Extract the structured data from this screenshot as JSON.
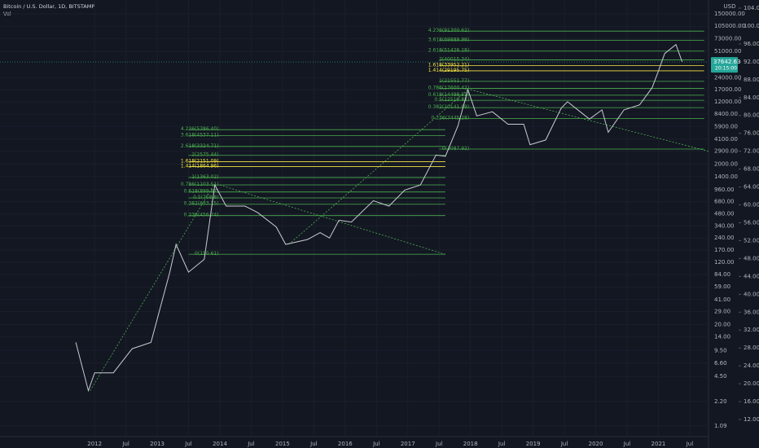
{
  "header": {
    "symbol": "Bitcoin / U.S. Dollar, 1D, BITSTAMP",
    "volume_label": "Vol"
  },
  "chart_data": {
    "type": "line",
    "y_unit": "USD",
    "log_scale": true,
    "grid": true,
    "xlim": [
      2010.49,
      2021.8
    ],
    "xticks": [
      {
        "value": 2012,
        "label": "2012"
      },
      {
        "value": 2012.5,
        "label": "Jul"
      },
      {
        "value": 2013,
        "label": "2013"
      },
      {
        "value": 2013.5,
        "label": "Jul"
      },
      {
        "value": 2014,
        "label": "2014"
      },
      {
        "value": 2014.5,
        "label": "Jul"
      },
      {
        "value": 2015,
        "label": "2015"
      },
      {
        "value": 2015.5,
        "label": "Jul"
      },
      {
        "value": 2016,
        "label": "2016"
      },
      {
        "value": 2016.5,
        "label": "Jul"
      },
      {
        "value": 2017,
        "label": "2017"
      },
      {
        "value": 2017.5,
        "label": "Jul"
      },
      {
        "value": 2018,
        "label": "2018"
      },
      {
        "value": 2018.5,
        "label": "Jul"
      },
      {
        "value": 2019,
        "label": "2019"
      },
      {
        "value": 2019.5,
        "label": "Jul"
      },
      {
        "value": 2020,
        "label": "2020"
      },
      {
        "value": 2020.5,
        "label": "Jul"
      },
      {
        "value": 2021,
        "label": "2021"
      },
      {
        "value": 2021.5,
        "label": "Jul"
      }
    ],
    "ylim": [
      0.73,
      223000
    ],
    "yticks": [
      {
        "value": 150000,
        "label": "150000.00"
      },
      {
        "value": 105000,
        "label": "105000.00"
      },
      {
        "value": 73000,
        "label": "73000.00"
      },
      {
        "value": 51000,
        "label": "51000.00"
      },
      {
        "value": 24000,
        "label": "24000.00"
      },
      {
        "value": 17000,
        "label": "17000.00"
      },
      {
        "value": 12000,
        "label": "12000.00"
      },
      {
        "value": 8400,
        "label": "8400.00"
      },
      {
        "value": 5900,
        "label": "5900.00"
      },
      {
        "value": 4100,
        "label": "4100.00"
      },
      {
        "value": 2900,
        "label": "2900.00"
      },
      {
        "value": 2000,
        "label": "2000.00"
      },
      {
        "value": 1400,
        "label": "1400.00"
      },
      {
        "value": 960,
        "label": "960.00"
      },
      {
        "value": 680,
        "label": "680.00"
      },
      {
        "value": 480,
        "label": "480.00"
      },
      {
        "value": 340,
        "label": "340.00"
      },
      {
        "value": 240,
        "label": "240.00"
      },
      {
        "value": 170,
        "label": "170.00"
      },
      {
        "value": 120,
        "label": "120.00"
      },
      {
        "value": 84,
        "label": "84.00"
      },
      {
        "value": 59,
        "label": "59.00"
      },
      {
        "value": 41,
        "label": "41.00"
      },
      {
        "value": 29,
        "label": "29.00"
      },
      {
        "value": 20,
        "label": "20.00"
      },
      {
        "value": 14,
        "label": "14.00"
      },
      {
        "value": 9.5,
        "label": "9.50"
      },
      {
        "value": 6.6,
        "label": "6.60"
      },
      {
        "value": 4.5,
        "label": "4.50"
      },
      {
        "value": 2.2,
        "label": "2.20"
      },
      {
        "value": 1.09,
        "label": "1.09"
      }
    ],
    "y2lim": [
      7.45,
      105.82
    ],
    "y2ticks": [
      {
        "value": 104,
        "label": "104.00"
      },
      {
        "value": 100,
        "label": "100.00"
      },
      {
        "value": 96,
        "label": "96.00"
      },
      {
        "value": 92,
        "label": "92.00"
      },
      {
        "value": 88,
        "label": "88.00"
      },
      {
        "value": 84,
        "label": "84.00"
      },
      {
        "value": 80,
        "label": "80.00"
      },
      {
        "value": 76,
        "label": "76.00"
      },
      {
        "value": 72,
        "label": "72.00"
      },
      {
        "value": 68,
        "label": "68.00"
      },
      {
        "value": 64,
        "label": "64.00"
      },
      {
        "value": 60,
        "label": "60.00"
      },
      {
        "value": 56,
        "label": "56.00"
      },
      {
        "value": 52,
        "label": "52.00"
      },
      {
        "value": 48,
        "label": "48.00"
      },
      {
        "value": 44,
        "label": "44.00"
      },
      {
        "value": 40,
        "label": "40.00"
      },
      {
        "value": 36,
        "label": "36.00"
      },
      {
        "value": 32,
        "label": "32.00"
      },
      {
        "value": 28,
        "label": "28.00"
      },
      {
        "value": 24,
        "label": "24.00"
      },
      {
        "value": 20,
        "label": "20.00"
      },
      {
        "value": 16,
        "label": "16.00"
      },
      {
        "value": 12,
        "label": "12.00"
      }
    ],
    "series": [
      {
        "name": "BTCUSD",
        "color": "#c9cbd3",
        "x": [
          2011.7,
          2011.9,
          2012.0,
          2012.3,
          2012.6,
          2012.9,
          2013.2,
          2013.3,
          2013.5,
          2013.75,
          2013.92,
          2014.1,
          2014.4,
          2014.6,
          2014.9,
          2015.05,
          2015.4,
          2015.6,
          2015.75,
          2015.9,
          2016.1,
          2016.45,
          2016.7,
          2016.95,
          2017.2,
          2017.45,
          2017.6,
          2017.8,
          2017.96,
          2018.1,
          2018.35,
          2018.6,
          2018.85,
          2018.95,
          2019.2,
          2019.45,
          2019.55,
          2019.9,
          2020.1,
          2020.2,
          2020.45,
          2020.7,
          2020.9,
          2021.0,
          2021.1,
          2021.28,
          2021.38
        ],
        "values": [
          12,
          3,
          5,
          5,
          10,
          12,
          90,
          200,
          90,
          130,
          1100,
          600,
          600,
          500,
          330,
          200,
          230,
          280,
          240,
          400,
          380,
          700,
          600,
          950,
          1100,
          2600,
          2500,
          6000,
          17000,
          8000,
          9000,
          6300,
          6300,
          3500,
          4000,
          10000,
          12000,
          7300,
          9500,
          5000,
          9500,
          11000,
          18000,
          29000,
          48000,
          62000,
          37600
        ]
      }
    ],
    "last_price": {
      "value": 37642.63,
      "label": "37642.63",
      "countdown": "20:15:00"
    },
    "fib_sets": [
      {
        "start": 2013.5,
        "end": 2017.6,
        "levels": [
          {
            "label": "4.236(5386.40)",
            "value": 5386.4,
            "color": "#4caf50"
          },
          {
            "label": "3.618(4537.11)",
            "value": 4537.11,
            "color": "#4caf50"
          },
          {
            "label": "2.618(3324.71)",
            "value": 3324.71,
            "color": "#4caf50"
          },
          {
            "label": "2(2575.44)",
            "value": 2575.44,
            "color": "#4caf50"
          },
          {
            "label": "1.618(2151.09)",
            "value": 2151.09,
            "color": "#f5e642"
          },
          {
            "label": "1.414(1864.96)",
            "value": 1864.96,
            "color": "#f5e642"
          },
          {
            "label": "1(1363.02)",
            "value": 1363.02,
            "color": "#4caf50"
          },
          {
            "label": "0.786(1103.51)",
            "value": 1103.51,
            "color": "#4caf50"
          },
          {
            "label": "0.618(899.87)",
            "value": 899.87,
            "color": "#4caf50"
          },
          {
            "label": "0.5(758.8)",
            "value": 758.8,
            "color": "#4caf50"
          },
          {
            "label": "0.382(633.15)",
            "value": 633.15,
            "color": "#4caf50"
          },
          {
            "label": "0.236(456.74)",
            "value": 456.74,
            "color": "#4caf50"
          },
          {
            "label": "0(150.61)",
            "value": 150.61,
            "color": "#4caf50"
          }
        ]
      },
      {
        "start": 2017.5,
        "end": 2021.73,
        "levels": [
          {
            "label": "4.236(91300.62)",
            "value": 91300.62,
            "color": "#4caf50"
          },
          {
            "label": "3.618(69889.99)",
            "value": 69889.99,
            "color": "#4caf50"
          },
          {
            "label": "2.618(51426.18)",
            "value": 51426.18,
            "color": "#4caf50"
          },
          {
            "label": "2(40015.34)",
            "value": 40015.34,
            "color": "#4caf50"
          },
          {
            "label": "1.618(33952.21)",
            "value": 33952.21,
            "color": "#f5e642"
          },
          {
            "label": "1.414(29195.75)",
            "value": 29195.75,
            "color": "#f5e642"
          },
          {
            "label": "1(21551.77)",
            "value": 21551.77,
            "color": "#4caf50"
          },
          {
            "label": "0.786(17600.42)",
            "value": 17600.42,
            "color": "#4caf50"
          },
          {
            "label": "0.618(14498.51)",
            "value": 14498.51,
            "color": "#4caf50"
          },
          {
            "label": "0.5(12519.82)",
            "value": 12519.82,
            "color": "#4caf50"
          },
          {
            "label": "0.382(10141.09)",
            "value": 10141.09,
            "color": "#4caf50"
          },
          {
            "label": "0.236(7445.28)",
            "value": 7445.28,
            "color": "#4caf50"
          },
          {
            "label": "0(3087.92)",
            "value": 3087.92,
            "color": "#4caf50"
          }
        ]
      }
    ],
    "trendlines": [
      {
        "x": [
          2011.93,
          2013.9
        ],
        "values": [
          3,
          1100
        ],
        "color": "#4caf50"
      },
      {
        "x": [
          2014.0,
          2017.6
        ],
        "values": [
          1100,
          150
        ],
        "color": "#4caf50"
      },
      {
        "x": [
          2015.1,
          2017.96
        ],
        "values": [
          200,
          17000
        ],
        "color": "#4caf50"
      },
      {
        "x": [
          2018.0,
          2021.8
        ],
        "values": [
          17000,
          2900
        ],
        "color": "#4caf50"
      }
    ]
  }
}
